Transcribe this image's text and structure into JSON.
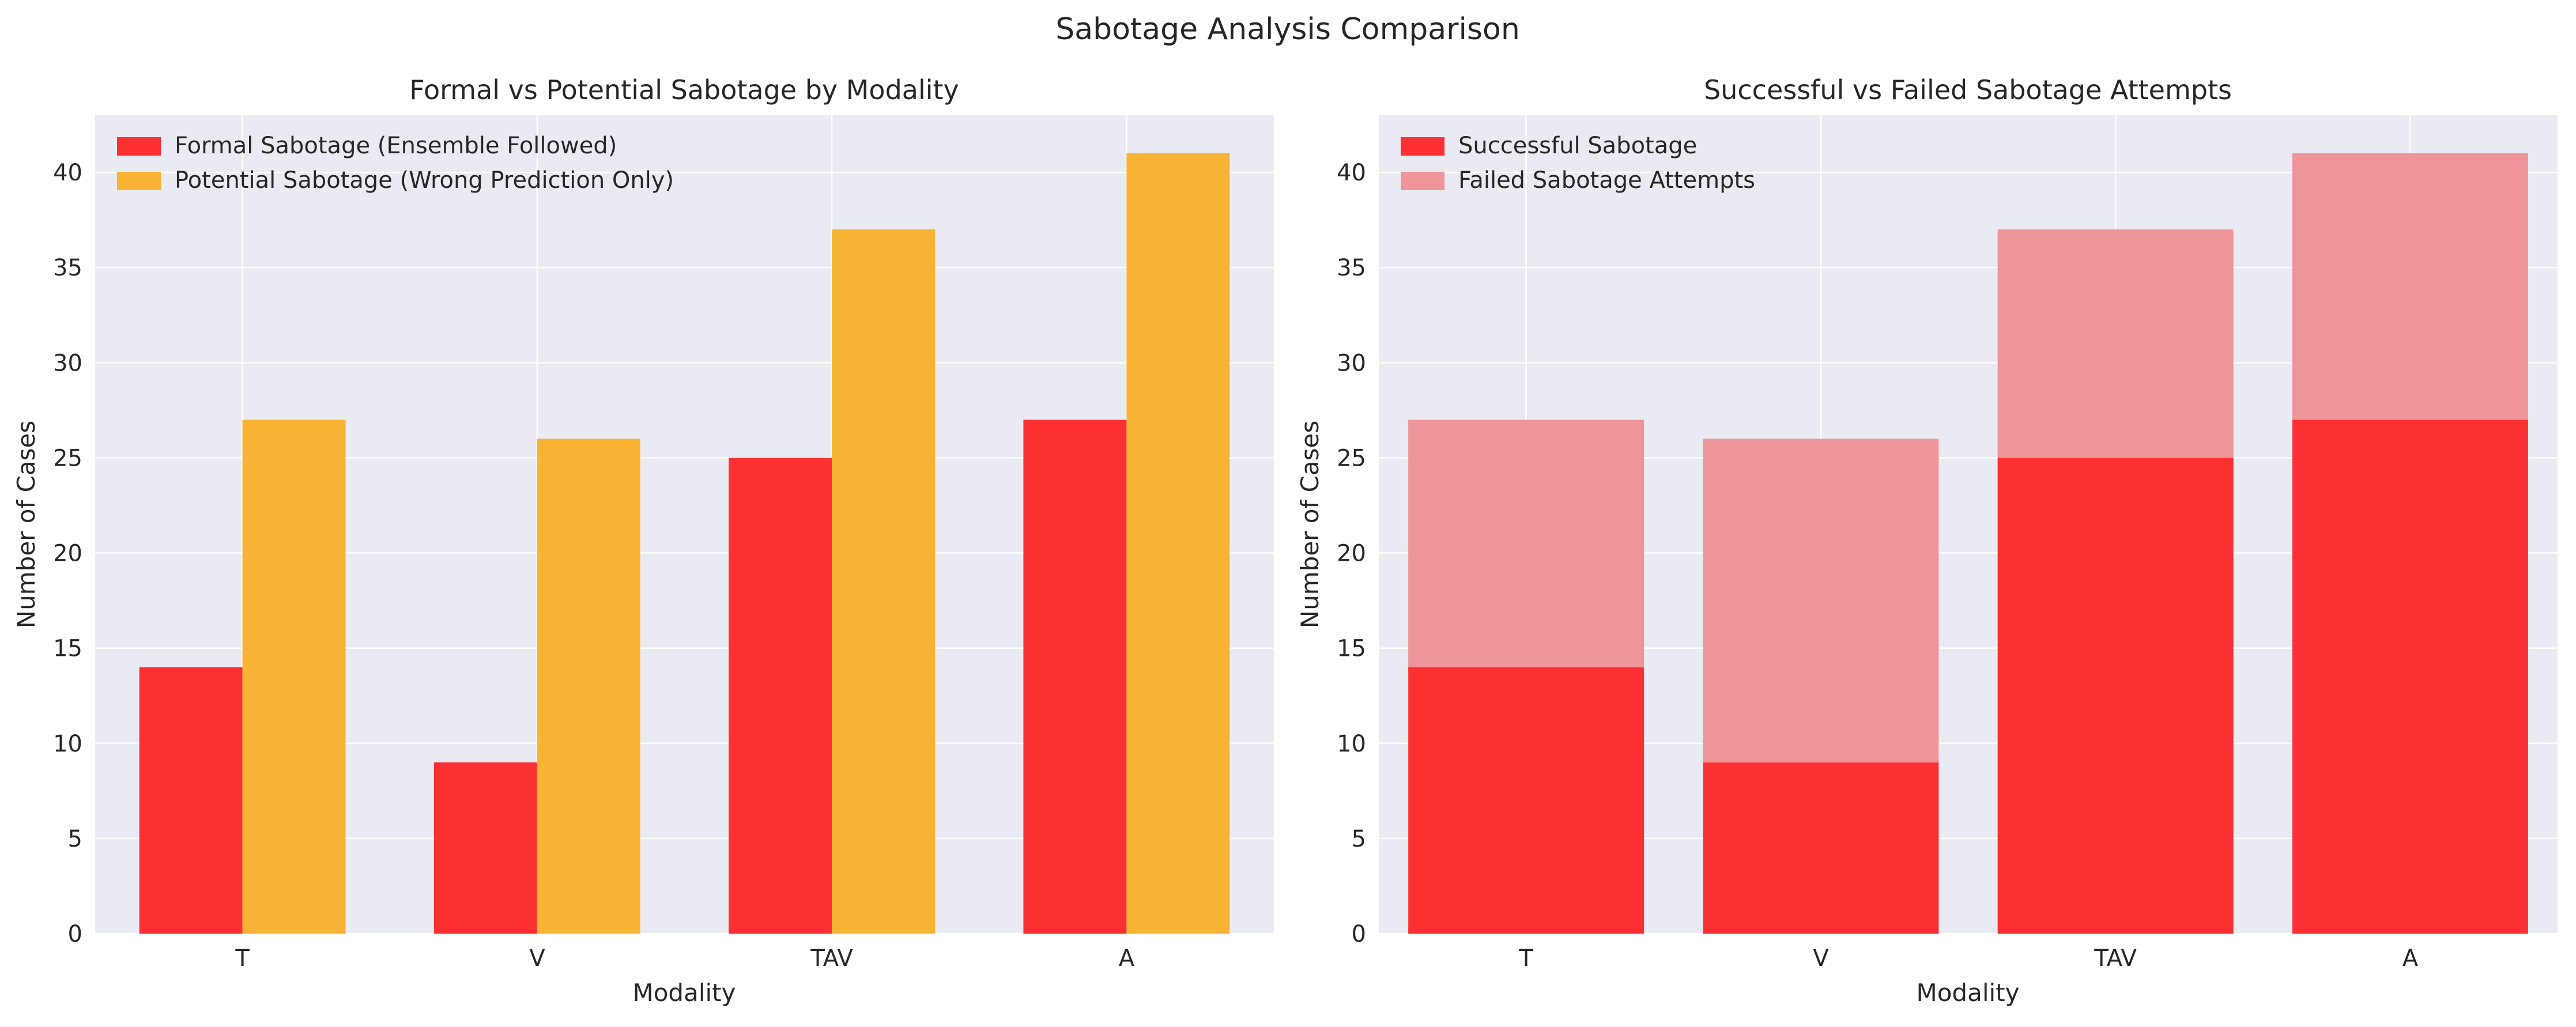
{
  "figure": {
    "suptitle": "Sabotage Analysis Comparison"
  },
  "chart_data": [
    {
      "type": "bar",
      "title": "Formal vs Potential Sabotage by Modality",
      "xlabel": "Modality",
      "ylabel": "Number of Cases",
      "categories": [
        "T",
        "V",
        "TAV",
        "A"
      ],
      "ylim": [
        0,
        43
      ],
      "yticks": [
        0,
        5,
        10,
        15,
        20,
        25,
        30,
        35,
        40
      ],
      "grid": true,
      "legend_position": "top-left",
      "series": [
        {
          "name": "Formal Sabotage (Ensemble Followed)",
          "values": [
            14,
            9,
            25,
            27
          ],
          "color": "#fc3033"
        },
        {
          "name": "Potential Sabotage (Wrong Prediction Only)",
          "values": [
            27,
            26,
            37,
            41
          ],
          "color": "#f8b334"
        }
      ]
    },
    {
      "type": "bar",
      "stacked": true,
      "title": "Successful vs Failed Sabotage Attempts",
      "xlabel": "Modality",
      "ylabel": "Number of Cases",
      "categories": [
        "T",
        "V",
        "TAV",
        "A"
      ],
      "ylim": [
        0,
        43
      ],
      "yticks": [
        0,
        5,
        10,
        15,
        20,
        25,
        30,
        35,
        40
      ],
      "grid": true,
      "legend_position": "top-left",
      "series": [
        {
          "name": "Successful Sabotage",
          "values": [
            14,
            9,
            25,
            27
          ],
          "color": "#fc3033"
        },
        {
          "name": "Failed Sabotage Attempts",
          "values": [
            13,
            17,
            12,
            14
          ],
          "color": "#ed9598"
        }
      ]
    }
  ]
}
